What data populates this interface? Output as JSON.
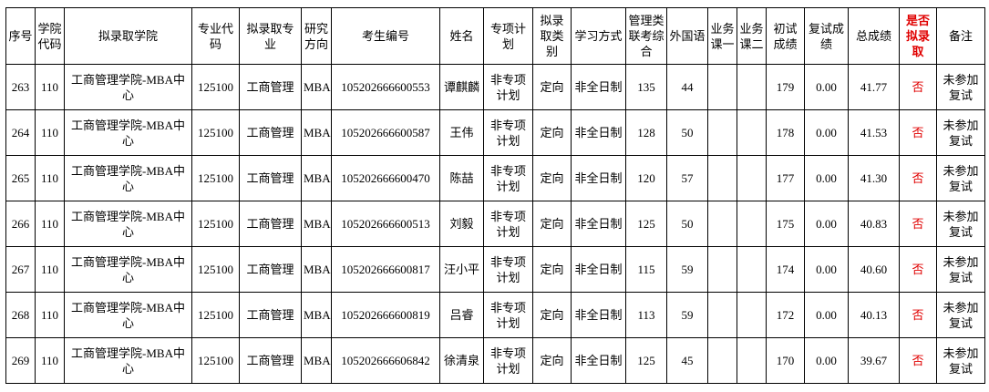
{
  "table": {
    "columns": [
      "序号",
      "学院代码",
      "拟录取学院",
      "专业代码",
      "拟录取专业",
      "研究方向",
      "考生编号",
      "姓名",
      "专项计划",
      "拟录取类别",
      "学习方式",
      "管理类联考综合",
      "外国语",
      "业务课一",
      "业务课二",
      "初试成绩",
      "复试成绩",
      "总成绩",
      "是否拟录取",
      "备注"
    ],
    "rows": [
      [
        "263",
        "110",
        "工商管理学院-MBA中心",
        "125100",
        "工商管理",
        "MBA",
        "105202666600553",
        "谭麒麟",
        "非专项计划",
        "定向",
        "非全日制",
        "135",
        "44",
        null,
        null,
        "179",
        "0.00",
        "41.77",
        "否",
        "未参加复试"
      ],
      [
        "264",
        "110",
        "工商管理学院-MBA中心",
        "125100",
        "工商管理",
        "MBA",
        "105202666600587",
        "王伟",
        "非专项计划",
        "定向",
        "非全日制",
        "128",
        "50",
        null,
        null,
        "178",
        "0.00",
        "41.53",
        "否",
        "未参加复试"
      ],
      [
        "265",
        "110",
        "工商管理学院-MBA中心",
        "125100",
        "工商管理",
        "MBA",
        "105202666600470",
        "陈喆",
        "非专项计划",
        "定向",
        "非全日制",
        "120",
        "57",
        null,
        null,
        "177",
        "0.00",
        "41.30",
        "否",
        "未参加复试"
      ],
      [
        "266",
        "110",
        "工商管理学院-MBA中心",
        "125100",
        "工商管理",
        "MBA",
        "105202666600513",
        "刘毅",
        "非专项计划",
        "定向",
        "非全日制",
        "125",
        "50",
        null,
        null,
        "175",
        "0.00",
        "40.83",
        "否",
        "未参加复试"
      ],
      [
        "267",
        "110",
        "工商管理学院-MBA中心",
        "125100",
        "工商管理",
        "MBA",
        "105202666600817",
        "汪小平",
        "非专项计划",
        "定向",
        "非全日制",
        "115",
        "59",
        null,
        null,
        "174",
        "0.00",
        "40.60",
        "否",
        "未参加复试"
      ],
      [
        "268",
        "110",
        "工商管理学院-MBA中心",
        "125100",
        "工商管理",
        "MBA",
        "105202666600819",
        "吕睿",
        "非专项计划",
        "定向",
        "非全日制",
        "113",
        "59",
        null,
        null,
        "172",
        "0.00",
        "40.13",
        "否",
        "未参加复试"
      ],
      [
        "269",
        "110",
        "工商管理学院-MBA中心",
        "125100",
        "工商管理",
        "MBA",
        "105202666606842",
        "徐清泉",
        "非专项计划",
        "定向",
        "非全日制",
        "125",
        "45",
        null,
        null,
        "170",
        "0.00",
        "39.67",
        "否",
        "未参加复试"
      ]
    ]
  }
}
